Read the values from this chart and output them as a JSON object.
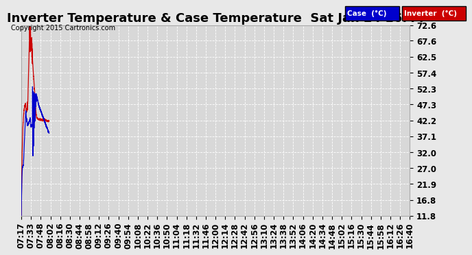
{
  "title": "Inverter Temperature & Case Temperature  Sat Jan 24 16:44",
  "copyright": "Copyright 2015 Cartronics.com",
  "legend_case_label": "Case  (°C)",
  "legend_inverter_label": "Inverter  (°C)",
  "yticks": [
    11.8,
    16.8,
    21.9,
    27.0,
    32.0,
    37.1,
    42.2,
    47.3,
    52.3,
    57.4,
    62.5,
    67.6,
    72.6
  ],
  "ylim": [
    11.8,
    72.6
  ],
  "bg_color": "#e8e8e8",
  "plot_bg_color": "#d8d8d8",
  "grid_color": "#ffffff",
  "case_color": "#0000cc",
  "inverter_color": "#cc0000",
  "title_fontsize": 13,
  "tick_fontsize": 8.5,
  "legend_bg_case": "#0000cc",
  "legend_bg_inverter": "#cc0000",
  "time_labels": [
    "07:17",
    "07:33",
    "07:48",
    "08:02",
    "08:16",
    "08:30",
    "08:44",
    "08:58",
    "09:12",
    "09:26",
    "09:40",
    "09:54",
    "10:08",
    "10:22",
    "10:36",
    "10:50",
    "11:04",
    "11:18",
    "11:32",
    "11:46",
    "12:00",
    "12:14",
    "12:28",
    "12:42",
    "12:56",
    "13:10",
    "13:24",
    "13:38",
    "13:52",
    "14:06",
    "14:20",
    "14:34",
    "14:48",
    "15:02",
    "15:16",
    "15:30",
    "15:44",
    "15:58",
    "16:12",
    "16:26",
    "16:40"
  ]
}
